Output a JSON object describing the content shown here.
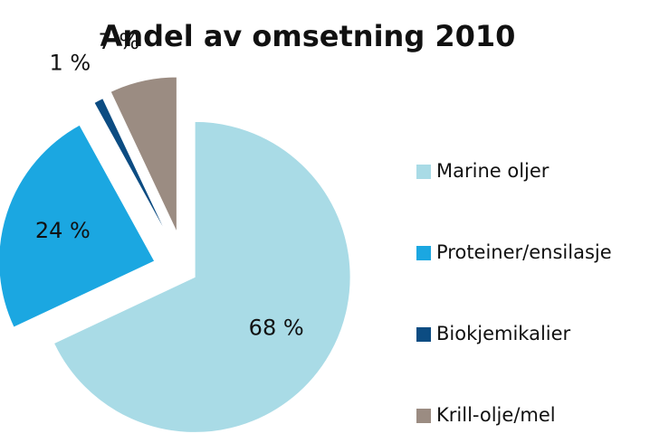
{
  "chart_data": {
    "type": "pie",
    "title": "Andel av omsetning 2010",
    "categories": [
      "Marine oljer",
      "Proteiner/ensilasje",
      "Biokjemikalier",
      "Krill-olje/mel"
    ],
    "values": [
      68,
      24,
      1,
      7
    ],
    "value_labels": [
      "68 %",
      "24 %",
      "1 %",
      "7 %"
    ],
    "colors": [
      "#a9dbe6",
      "#1ba7e1",
      "#0c4c82",
      "#9b8c82"
    ],
    "legend": "right"
  }
}
